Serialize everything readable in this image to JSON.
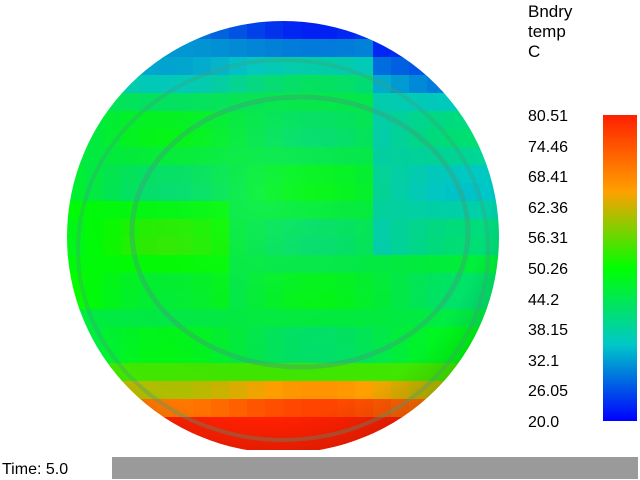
{
  "legend": {
    "title_lines": [
      "Bndry",
      "temp",
      "C"
    ],
    "ticks": [
      "80.51",
      "74.46",
      "68.41",
      "62.36",
      "56.31",
      "50.26",
      "44.2",
      "38.15",
      "32.1",
      "26.05",
      "20.0"
    ],
    "min": 20.0,
    "max": 80.51,
    "colormap": [
      "#0000ff",
      "#00c8c8",
      "#00ff00",
      "#ffa000",
      "#ff2000"
    ]
  },
  "time": {
    "label": "Time: 5.0"
  },
  "slider": {
    "color": "#9a9a9a"
  }
}
